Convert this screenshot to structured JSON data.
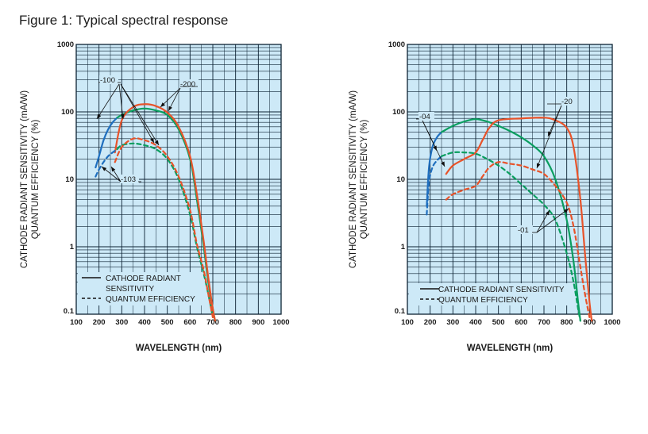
{
  "figure_title": "Figure 1: Typical spectral response",
  "colors": {
    "panel_bg": "#cde9f7",
    "grid": "#0d2233",
    "blue": "#1f6fbf",
    "green": "#0a9e5f",
    "red": "#e8532a"
  },
  "chart_data": [
    {
      "type": "line",
      "log_y": true,
      "xlim": [
        100,
        1000
      ],
      "ylim": [
        0.1,
        1000
      ],
      "x_ticks": [
        "100",
        "200",
        "300",
        "400",
        "500",
        "600",
        "700",
        "800",
        "900",
        "1000"
      ],
      "y_ticks": [
        "0.1",
        "1",
        "10",
        "100",
        "1000"
      ],
      "ylabel_line1": "CATHODE RADIANT SENSITIVITY (mA/W)",
      "ylabel_line2": "QUANTUM EFFICIENCY (%)",
      "xlabel": "WAVELENGTH (nm)",
      "legend": {
        "position": "bottom-left",
        "solid": "CATHODE RADIANT",
        "solid_cont": "SENSITIVITY",
        "dashed": "QUANTUM EFFICIENCY"
      },
      "callouts": [
        "-100",
        "-200",
        "-103"
      ],
      "series": [
        {
          "color": "blue",
          "dashed": false,
          "x": [
            185,
            200,
            220,
            240,
            260,
            280
          ],
          "y": [
            15,
            22,
            38,
            55,
            70,
            82
          ]
        },
        {
          "color": "green",
          "dashed": false,
          "x": [
            280,
            300,
            350,
            400,
            450,
            500,
            550,
            600,
            630,
            660,
            680,
            700,
            710
          ],
          "y": [
            82,
            90,
            105,
            112,
            105,
            90,
            55,
            20,
            5,
            1,
            0.3,
            0.12,
            0.08
          ]
        },
        {
          "color": "red",
          "dashed": false,
          "x": [
            270,
            300,
            350,
            400,
            450,
            500,
            550,
            600,
            630,
            660,
            680,
            700,
            710
          ],
          "y": [
            25,
            75,
            118,
            130,
            122,
            98,
            60,
            22,
            6,
            1.2,
            0.35,
            0.12,
            0.08
          ]
        },
        {
          "color": "blue",
          "dashed": true,
          "x": [
            185,
            200,
            220,
            240,
            260,
            280
          ],
          "y": [
            11,
            14,
            18,
            22,
            25,
            28
          ]
        },
        {
          "color": "green",
          "dashed": true,
          "x": [
            280,
            300,
            350,
            400,
            450,
            500,
            550,
            600,
            630,
            660,
            680,
            700
          ],
          "y": [
            28,
            32,
            34,
            32,
            28,
            20,
            10,
            3,
            1,
            0.4,
            0.2,
            0.09
          ]
        },
        {
          "color": "red",
          "dashed": true,
          "x": [
            270,
            300,
            350,
            400,
            450,
            500,
            550,
            600,
            630,
            660,
            680,
            700
          ],
          "y": [
            18,
            30,
            40,
            38,
            32,
            22,
            11,
            3.5,
            1.1,
            0.45,
            0.2,
            0.09
          ]
        }
      ]
    },
    {
      "type": "line",
      "log_y": true,
      "xlim": [
        100,
        1000
      ],
      "ylim": [
        0.1,
        1000
      ],
      "x_ticks": [
        "100",
        "200",
        "300",
        "400",
        "500",
        "600",
        "700",
        "800",
        "900",
        "1000"
      ],
      "y_ticks": [
        "0.1",
        "1",
        "10",
        "100",
        "1000"
      ],
      "ylabel_line1": "CATHODE RADIANT SENSITIVITY (mA/W)",
      "ylabel_line2": "QUANTUM EFFICIENCY (%)",
      "xlabel": "WAVELENGTH (nm)",
      "legend": {
        "position": "bottom-left",
        "solid": "CATHODE RADIANT SENSITIVITY",
        "solid_cont": "",
        "dashed": "QUANTUM EFFICIENCY"
      },
      "callouts": [
        "-04",
        "-20",
        "-01"
      ],
      "series": [
        {
          "color": "blue",
          "dashed": false,
          "x": [
            185,
            195,
            210,
            230,
            250
          ],
          "y": [
            4,
            15,
            30,
            42,
            50
          ]
        },
        {
          "color": "green",
          "dashed": false,
          "x": [
            250,
            300,
            350,
            400,
            450,
            500,
            550,
            600,
            650,
            700,
            750,
            800,
            830,
            850,
            860
          ],
          "y": [
            50,
            62,
            72,
            78,
            72,
            62,
            52,
            42,
            32,
            22,
            10,
            2.5,
            0.6,
            0.15,
            0.08
          ]
        },
        {
          "color": "red",
          "dashed": false,
          "x": [
            270,
            300,
            350,
            400,
            430,
            460,
            500,
            600,
            700,
            750,
            800,
            830,
            860,
            880,
            900,
            910
          ],
          "y": [
            12,
            16,
            20,
            25,
            38,
            58,
            75,
            80,
            82,
            75,
            58,
            30,
            5,
            0.8,
            0.15,
            0.08
          ]
        },
        {
          "color": "blue",
          "dashed": true,
          "x": [
            185,
            195,
            210,
            230,
            250
          ],
          "y": [
            3,
            9,
            15,
            19,
            22
          ]
        },
        {
          "color": "green",
          "dashed": true,
          "x": [
            250,
            300,
            350,
            400,
            450,
            500,
            550,
            600,
            650,
            700,
            750,
            800,
            830,
            850,
            860
          ],
          "y": [
            22,
            25,
            25,
            24,
            20,
            16,
            12,
            8.5,
            6,
            4.2,
            2.5,
            0.8,
            0.3,
            0.12,
            0.08
          ]
        },
        {
          "color": "red",
          "dashed": true,
          "x": [
            270,
            300,
            350,
            400,
            430,
            460,
            500,
            550,
            600,
            650,
            700,
            750,
            800,
            830,
            860,
            880,
            900
          ],
          "y": [
            5,
            6,
            7,
            8,
            11,
            15,
            18,
            17,
            16,
            14,
            12,
            8,
            4.5,
            2,
            0.5,
            0.2,
            0.09
          ]
        }
      ]
    }
  ]
}
